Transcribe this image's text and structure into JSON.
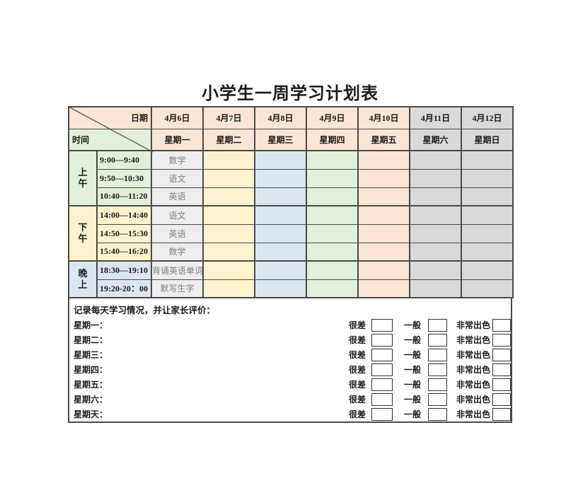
{
  "title": "小学生一周学习计划表",
  "table": {
    "corner": {
      "date_label": "日期",
      "time_label": "时间"
    },
    "columns": [
      {
        "date": "4月6日",
        "day": "星期一",
        "weekend": false,
        "color_key": "col_monday"
      },
      {
        "date": "4月7日",
        "day": "星期二",
        "weekend": false,
        "color_key": "col_tuesday"
      },
      {
        "date": "4月8日",
        "day": "星期三",
        "weekend": false,
        "color_key": "col_wednesday"
      },
      {
        "date": "4月9日",
        "day": "星期四",
        "weekend": false,
        "color_key": "col_thursday"
      },
      {
        "date": "4月10日",
        "day": "星期五",
        "weekend": false,
        "color_key": "col_friday"
      },
      {
        "date": "4月11日",
        "day": "星期六",
        "weekend": true,
        "color_key": "col_saturday"
      },
      {
        "date": "4月12日",
        "day": "星期日",
        "weekend": true,
        "color_key": "col_sunday"
      }
    ],
    "groups": [
      {
        "period": "上午",
        "color_key": "morning",
        "rows": [
          {
            "time": "9:00—9:40",
            "subject": "数学"
          },
          {
            "time": "9:50—10:30",
            "subject": "语文"
          },
          {
            "time": "10:40—11:20",
            "subject": "英语"
          }
        ]
      },
      {
        "period": "下午",
        "color_key": "afternoon",
        "rows": [
          {
            "time": "14:00—14:40",
            "subject": "语文"
          },
          {
            "time": "14:50—15:30",
            "subject": "英语"
          },
          {
            "time": "15:40—16:20",
            "subject": "数学"
          }
        ]
      },
      {
        "period": "晚上",
        "color_key": "evening",
        "rows": [
          {
            "time": "18:30—19:10",
            "subject": "背诵英语单词"
          },
          {
            "time": "19:20-20：00",
            "subject": "默写生字"
          }
        ]
      }
    ]
  },
  "evaluation": {
    "heading": "记录每天学习情况，并让家长评价：",
    "options": [
      "很差",
      "一般",
      "非常出色"
    ],
    "days": [
      "星期一：",
      "星期二：",
      "星期三：",
      "星期四：",
      "星期五：",
      "星期六：",
      "星期天："
    ]
  },
  "colors": {
    "border": "#4a4a4a",
    "header_weekday": "#fbe5d6",
    "header_weekend": "#d9d9d9",
    "morning": "#e2efda",
    "afternoon": "#fcf2ce",
    "evening": "#dce6f1",
    "col_monday": "#ededed",
    "col_tuesday": "#fcf2ce",
    "col_wednesday": "#dce6f1",
    "col_thursday": "#e2efda",
    "col_friday": "#fbe5d6",
    "col_saturday": "#d9d9d9",
    "col_sunday": "#d9d9d9",
    "subject_text": "#7f7f7f"
  }
}
